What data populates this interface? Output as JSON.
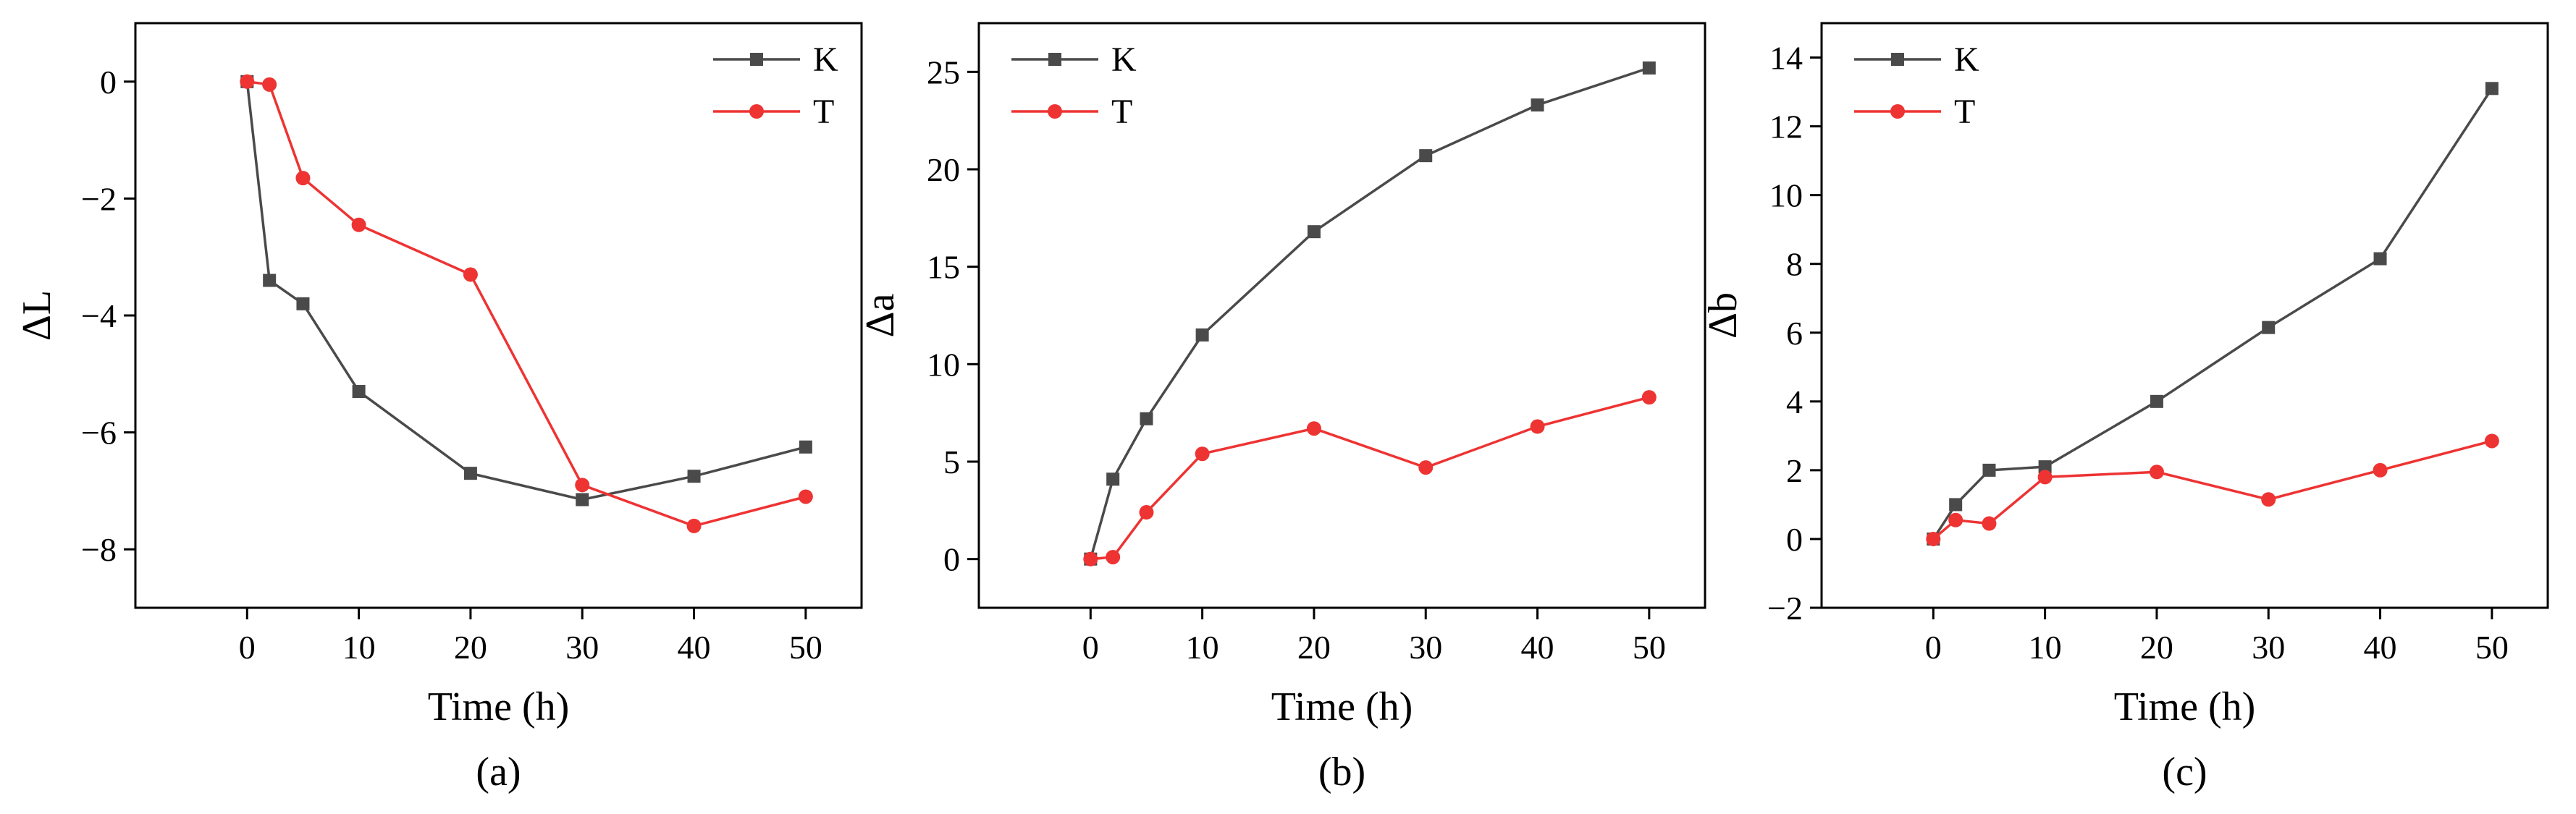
{
  "colors": {
    "K": "#4a4a4a",
    "T": "#ee3333",
    "axis": "#000000"
  },
  "chart_data": [
    {
      "type": "line",
      "caption": "(a)",
      "xlabel": "Time (h)",
      "ylabel": "ΔL",
      "xlim": [
        -10,
        55
      ],
      "ylim": [
        -9,
        1
      ],
      "xticks": [
        0,
        10,
        20,
        30,
        40,
        50
      ],
      "yticks": [
        0,
        -2,
        -4,
        -6,
        -8
      ],
      "ytick_labels": [
        "0",
        "−2",
        "−4",
        "−6",
        "−8"
      ],
      "legend_position": "top-right",
      "series": [
        {
          "name": "K",
          "marker": "square",
          "x": [
            0,
            2,
            5,
            10,
            20,
            30,
            40,
            50
          ],
          "values": [
            0,
            -3.4,
            -3.8,
            -5.3,
            -6.7,
            -7.15,
            -6.75,
            -6.25
          ]
        },
        {
          "name": "T",
          "marker": "circle",
          "x": [
            0,
            2,
            5,
            10,
            20,
            30,
            40,
            50
          ],
          "values": [
            0,
            -0.05,
            -1.65,
            -2.45,
            -3.3,
            -6.9,
            -7.6,
            -7.1
          ]
        }
      ]
    },
    {
      "type": "line",
      "caption": "(b)",
      "xlabel": "Time (h)",
      "ylabel": "Δa",
      "xlim": [
        -10,
        55
      ],
      "ylim": [
        -2.5,
        27.5
      ],
      "xticks": [
        0,
        10,
        20,
        30,
        40,
        50
      ],
      "yticks": [
        0,
        5,
        10,
        15,
        20,
        25
      ],
      "ytick_labels": [
        "0",
        "5",
        "10",
        "15",
        "20",
        "25"
      ],
      "legend_position": "top-left",
      "series": [
        {
          "name": "K",
          "marker": "square",
          "x": [
            0,
            2,
            5,
            10,
            20,
            30,
            40,
            50
          ],
          "values": [
            0,
            4.1,
            7.2,
            11.5,
            16.8,
            20.7,
            23.3,
            25.2
          ]
        },
        {
          "name": "T",
          "marker": "circle",
          "x": [
            0,
            2,
            5,
            10,
            20,
            30,
            40,
            50
          ],
          "values": [
            0,
            0.1,
            2.4,
            5.4,
            6.7,
            4.7,
            6.8,
            8.3
          ]
        }
      ]
    },
    {
      "type": "line",
      "caption": "(c)",
      "xlabel": "Time (h)",
      "ylabel": "Δb",
      "xlim": [
        -10,
        55
      ],
      "ylim": [
        -2,
        15
      ],
      "xticks": [
        0,
        10,
        20,
        30,
        40,
        50
      ],
      "yticks": [
        -2,
        0,
        2,
        4,
        6,
        8,
        10,
        12,
        14
      ],
      "ytick_labels": [
        "−2",
        "0",
        "2",
        "4",
        "6",
        "8",
        "10",
        "12",
        "14"
      ],
      "legend_position": "top-left",
      "series": [
        {
          "name": "K",
          "marker": "square",
          "x": [
            0,
            2,
            5,
            10,
            20,
            30,
            40,
            50
          ],
          "values": [
            0,
            1.0,
            2.0,
            2.1,
            4.0,
            6.15,
            8.15,
            13.1
          ]
        },
        {
          "name": "T",
          "marker": "circle",
          "x": [
            0,
            2,
            5,
            10,
            20,
            30,
            40,
            50
          ],
          "values": [
            0,
            0.55,
            0.45,
            1.8,
            1.95,
            1.15,
            2.0,
            2.85
          ]
        }
      ]
    }
  ]
}
